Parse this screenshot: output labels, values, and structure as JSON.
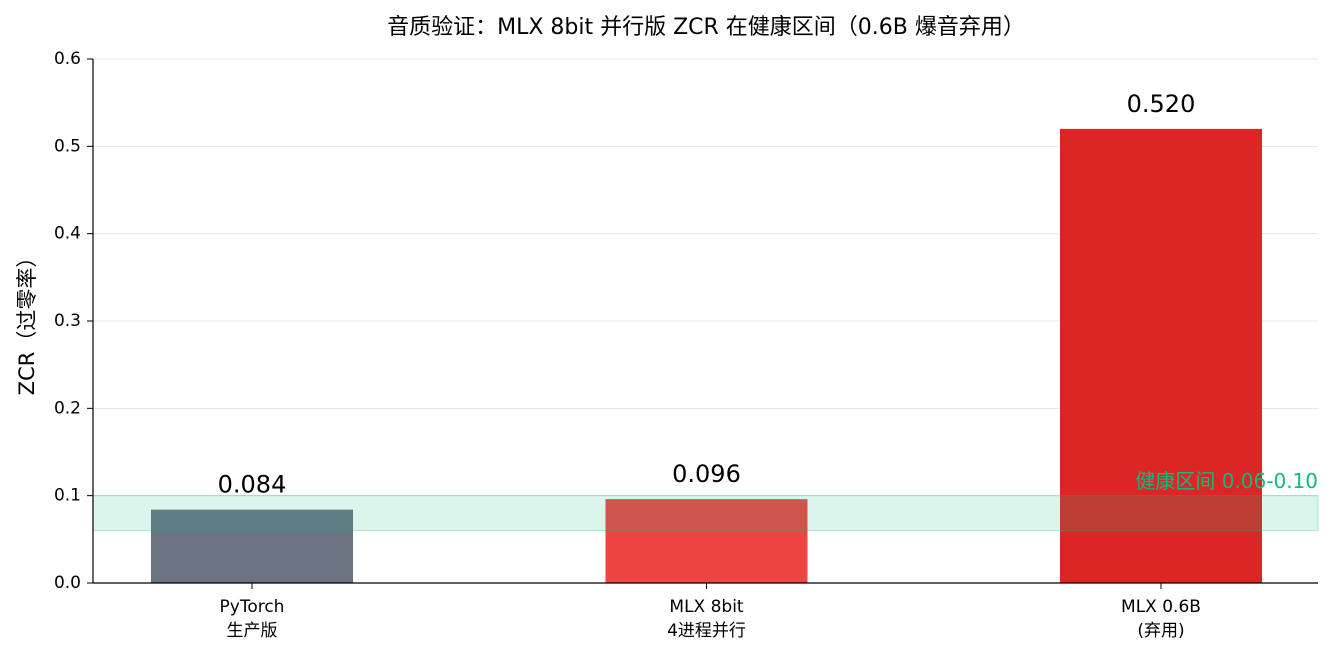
{
  "chart_data": {
    "type": "bar",
    "title": "音质验证：MLX 8bit 并行版 ZCR 在健康区间（0.6B 爆音弃用）",
    "y_label": "ZCR（过零率）",
    "categories": [
      [
        "PyTorch",
        "生产版"
      ],
      [
        "MLX 8bit",
        "4进程并行"
      ],
      [
        "MLX 0.6B",
        "(弃用)"
      ]
    ],
    "values": [
      0.084,
      0.096,
      0.52
    ],
    "value_labels": [
      "0.084",
      "0.096",
      "0.520"
    ],
    "colors": [
      "#6b7280",
      "#ef4444",
      "#dc2626"
    ],
    "ylim": [
      0,
      0.6
    ],
    "yticks": [
      {
        "value": 0,
        "label": "0.0"
      },
      0.1,
      0.2,
      0.3,
      0.4,
      0.5,
      0.6
    ],
    "grid": true,
    "band": {
      "range": [
        0.06,
        0.1
      ],
      "label": "健康区间 0.06-0.10",
      "color": "#10b981"
    }
  }
}
